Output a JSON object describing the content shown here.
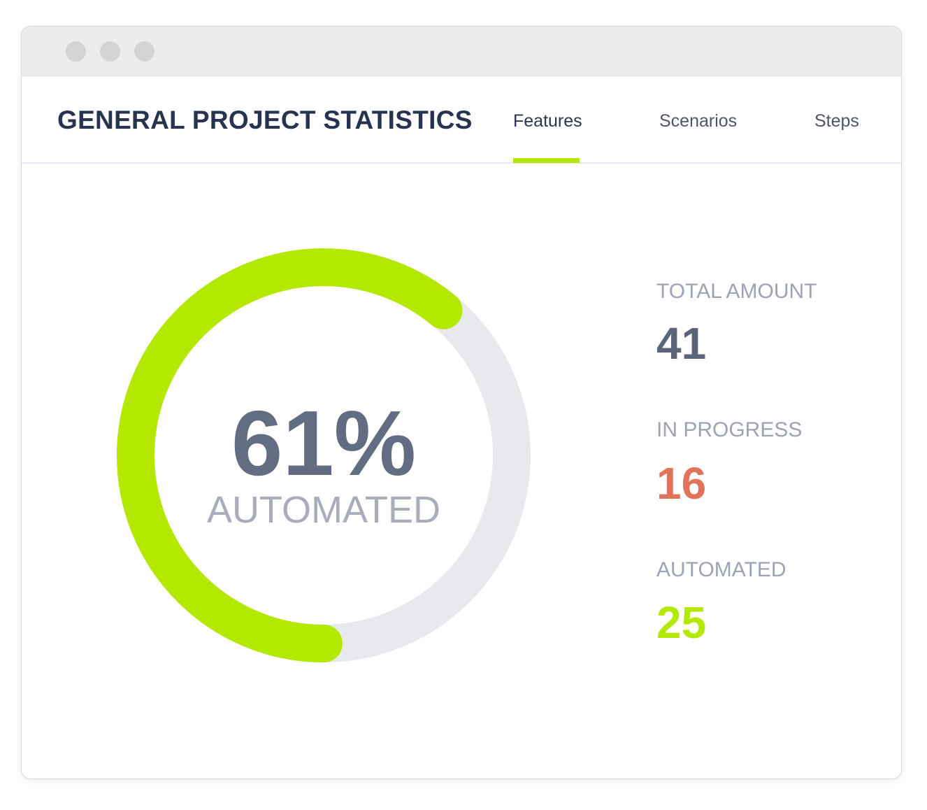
{
  "header": {
    "title": "GENERAL PROJECT STATISTICS",
    "tabs": [
      {
        "label": "Features",
        "active": true
      },
      {
        "label": "Scenarios",
        "active": false
      },
      {
        "label": "Steps",
        "active": false
      }
    ]
  },
  "donut": {
    "percent": 61,
    "percent_text": "61%",
    "label": "AUTOMATED",
    "fill_color": "#b5e800",
    "track_color": "#e8e9ed"
  },
  "stats": [
    {
      "label": "TOTAL AMOUNT",
      "value": "41",
      "color": "#5b6479"
    },
    {
      "label": "IN PROGRESS",
      "value": "16",
      "color": "#e0735a"
    },
    {
      "label": "AUTOMATED",
      "value": "25",
      "color": "#b5e800"
    }
  ]
}
